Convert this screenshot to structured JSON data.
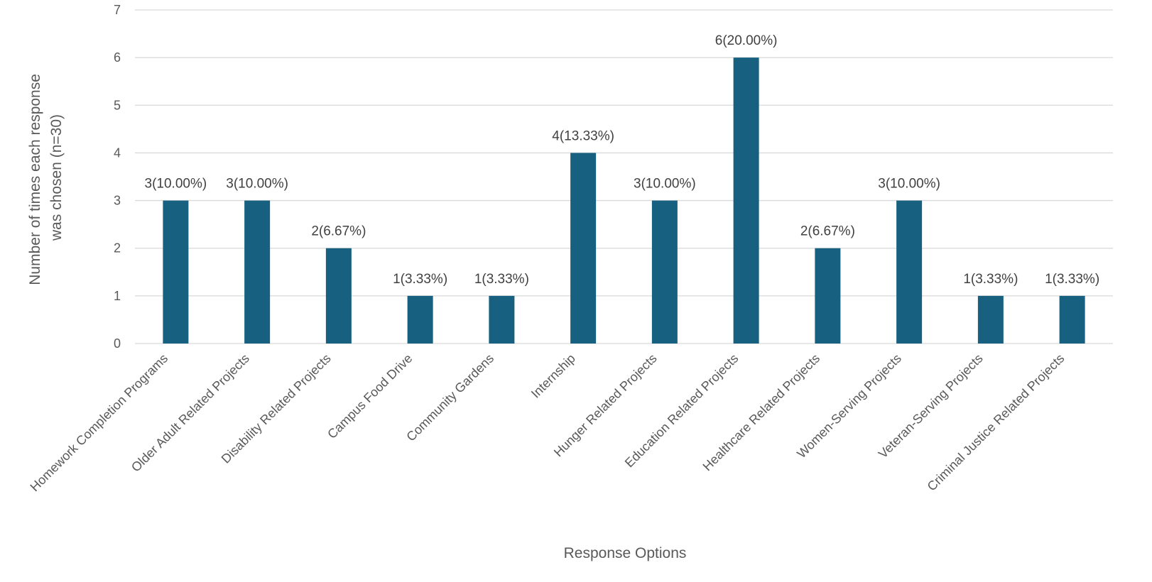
{
  "chart_data": {
    "type": "bar",
    "title": "",
    "xlabel": "Response Options",
    "ylabel_lines": [
      "Number of times each response",
      "was chosen (n=30)"
    ],
    "ylim": [
      0,
      7
    ],
    "yticks": [
      0,
      1,
      2,
      3,
      4,
      5,
      6,
      7
    ],
    "grid": true,
    "bar_color": "#17607f",
    "categories": [
      "Homework Completion Programs",
      "Older Adult Related Projects",
      "Disability Related Projects",
      "Campus Food Drive",
      "Community Gardens",
      "Internship",
      "Hunger Related Projects",
      "Education Related Projects",
      "Healthcare Related Projects",
      "Women-Serving Projects",
      "Veteran-Serving Projects",
      "Criminal Justice Related Projects"
    ],
    "values": [
      3,
      3,
      2,
      1,
      1,
      4,
      3,
      6,
      2,
      3,
      1,
      1
    ],
    "data_labels": [
      "3(10.00%)",
      "3(10.00%)",
      "2(6.67%)",
      "1(3.33%)",
      "1(3.33%)",
      "4(13.33%)",
      "3(10.00%)",
      "6(20.00%)",
      "2(6.67%)",
      "3(10.00%)",
      "1(3.33%)",
      "1(3.33%)"
    ]
  }
}
